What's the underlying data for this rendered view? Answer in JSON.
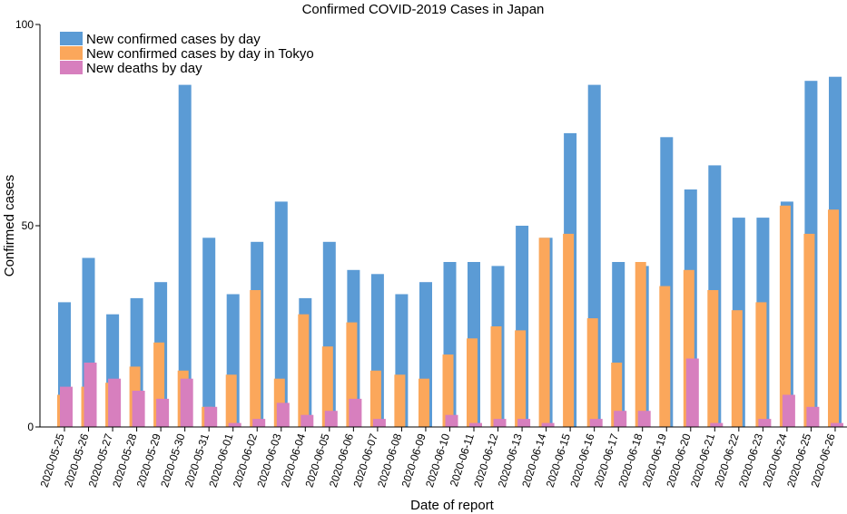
{
  "chart_data": {
    "type": "bar",
    "title": "Confirmed COVID-2019 Cases in Japan",
    "xlabel": "Date of report",
    "ylabel": "Confirmed cases",
    "ylim": [
      0,
      100
    ],
    "yticks": [
      0,
      50,
      100
    ],
    "grid": false,
    "legend_position": "top-left",
    "categories": [
      "2020-05-25",
      "2020-05-26",
      "2020-05-27",
      "2020-05-28",
      "2020-05-29",
      "2020-05-30",
      "2020-05-31",
      "2020-06-01",
      "2020-06-02",
      "2020-06-03",
      "2020-06-04",
      "2020-06-05",
      "2020-06-06",
      "2020-06-07",
      "2020-06-08",
      "2020-06-09",
      "2020-06-10",
      "2020-06-11",
      "2020-06-12",
      "2020-06-13",
      "2020-06-14",
      "2020-06-15",
      "2020-06-16",
      "2020-06-17",
      "2020-06-18",
      "2020-06-19",
      "2020-06-20",
      "2020-06-21",
      "2020-06-22",
      "2020-06-23",
      "2020-06-24",
      "2020-06-25",
      "2020-06-26"
    ],
    "series": [
      {
        "name": "New confirmed cases by day",
        "color": "#5b9bd5",
        "values": [
          31,
          42,
          28,
          32,
          36,
          85,
          47,
          33,
          46,
          56,
          32,
          46,
          39,
          38,
          33,
          36,
          41,
          41,
          40,
          50,
          47,
          73,
          85,
          41,
          40,
          72,
          59,
          65,
          52,
          52,
          56,
          86,
          87
        ]
      },
      {
        "name": "New confirmed cases by day in Tokyo",
        "color": "#fba75b",
        "values": [
          8,
          10,
          11,
          15,
          21,
          14,
          5,
          13,
          34,
          12,
          28,
          20,
          26,
          14,
          13,
          12,
          18,
          22,
          25,
          24,
          47,
          48,
          27,
          16,
          41,
          35,
          39,
          34,
          29,
          31,
          55,
          48,
          54
        ]
      },
      {
        "name": "New deaths by day",
        "color": "#d77fbe",
        "values": [
          10,
          16,
          12,
          9,
          7,
          12,
          5,
          1,
          2,
          6,
          3,
          4,
          7,
          2,
          0,
          0,
          3,
          1,
          2,
          2,
          1,
          0,
          2,
          4,
          4,
          0,
          17,
          1,
          0,
          2,
          8,
          5,
          1
        ]
      }
    ]
  }
}
